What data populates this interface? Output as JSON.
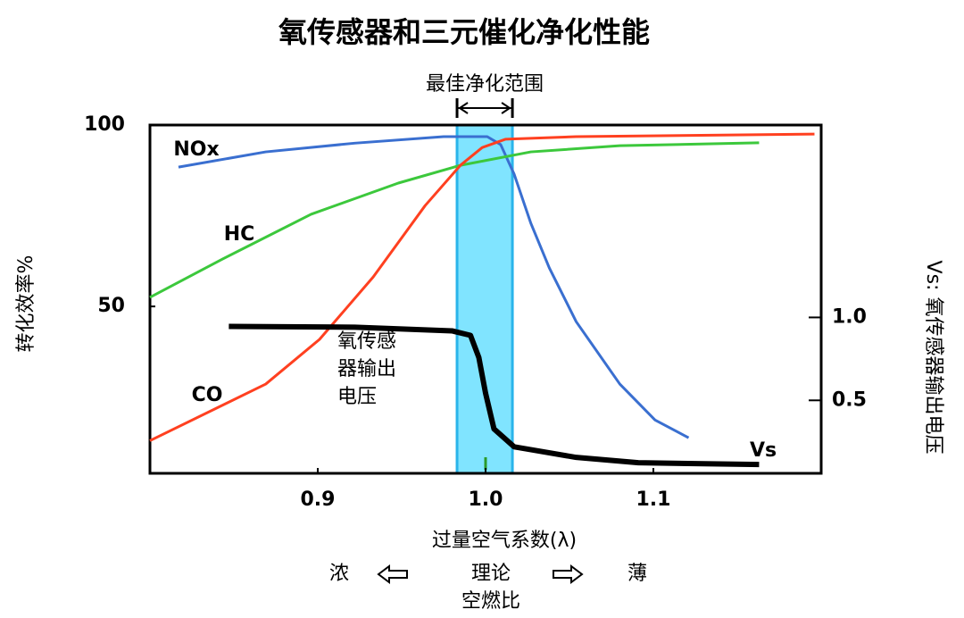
{
  "chart_data": {
    "type": "line",
    "title": "氧传感器和三元催化净化性能",
    "x_label": "过量空气系数(λ)",
    "y_label": "转化效率%",
    "y2_label": "Vs: 氧传感器输出电压",
    "xlim": [
      0.8,
      1.2
    ],
    "xticks": [
      {
        "value": 0.9,
        "label": "0.9"
      },
      {
        "value": 1,
        "label": "1.0"
      },
      {
        "value": 1.1,
        "label": "1.1"
      }
    ],
    "ylim": [
      4,
      100
    ],
    "yticks": [
      50,
      100
    ],
    "y2lim": [
      0.06,
      2.16
    ],
    "y2ticks": [
      {
        "value": 0.5,
        "label": "0.5"
      },
      {
        "value": 1,
        "label": "1.0"
      }
    ],
    "band": {
      "label": "最佳净化范围",
      "x": [
        0.983,
        1.016
      ],
      "color": "#80e4ff"
    },
    "annotation": [
      "氧传感",
      "器输出",
      "电压"
    ],
    "bottom_labels": {
      "rich": "浓",
      "stoich": "理论",
      "stoich2": "空燃比",
      "lean": "薄"
    },
    "series": [
      {
        "name": "NOx",
        "color": "#3a6fd0",
        "x": [
          0.817,
          0.869,
          0.922,
          0.975,
          1.001,
          1.009,
          1.017,
          1.027,
          1.038,
          1.054,
          1.08,
          1.101,
          1.121
        ],
        "values": [
          88.4,
          92.6,
          95,
          96.8,
          96.8,
          94.6,
          86.5,
          72.9,
          60.6,
          45.8,
          28.6,
          18.7,
          13.8
        ]
      },
      {
        "name": "HC",
        "color": "#3cc83c",
        "x": [
          0.8,
          0.843,
          0.896,
          0.948,
          0.985,
          1.027,
          1.08,
          1.163
        ],
        "values": [
          52.5,
          63,
          75.4,
          84,
          88.9,
          92.6,
          94.3,
          95.1
        ]
      },
      {
        "name": "CO",
        "color": "#ff4020",
        "x": [
          0.8,
          0.869,
          0.901,
          0.933,
          0.964,
          0.985,
          0.998,
          1.012,
          1.054,
          1.196
        ],
        "values": [
          13,
          28.6,
          40.9,
          58.1,
          77.8,
          88.9,
          93.8,
          96.1,
          96.8,
          97.5
        ]
      },
      {
        "name": "Vs",
        "color": "#000000",
        "axis": "y2",
        "x": [
          0.847,
          0.922,
          0.98,
          0.991,
          0.996,
          1.0,
          1.005,
          1.017,
          1.054,
          1.091,
          1.163
        ],
        "values": [
          0.946,
          0.941,
          0.919,
          0.892,
          0.758,
          0.543,
          0.328,
          0.22,
          0.156,
          0.124,
          0.113
        ]
      }
    ]
  }
}
